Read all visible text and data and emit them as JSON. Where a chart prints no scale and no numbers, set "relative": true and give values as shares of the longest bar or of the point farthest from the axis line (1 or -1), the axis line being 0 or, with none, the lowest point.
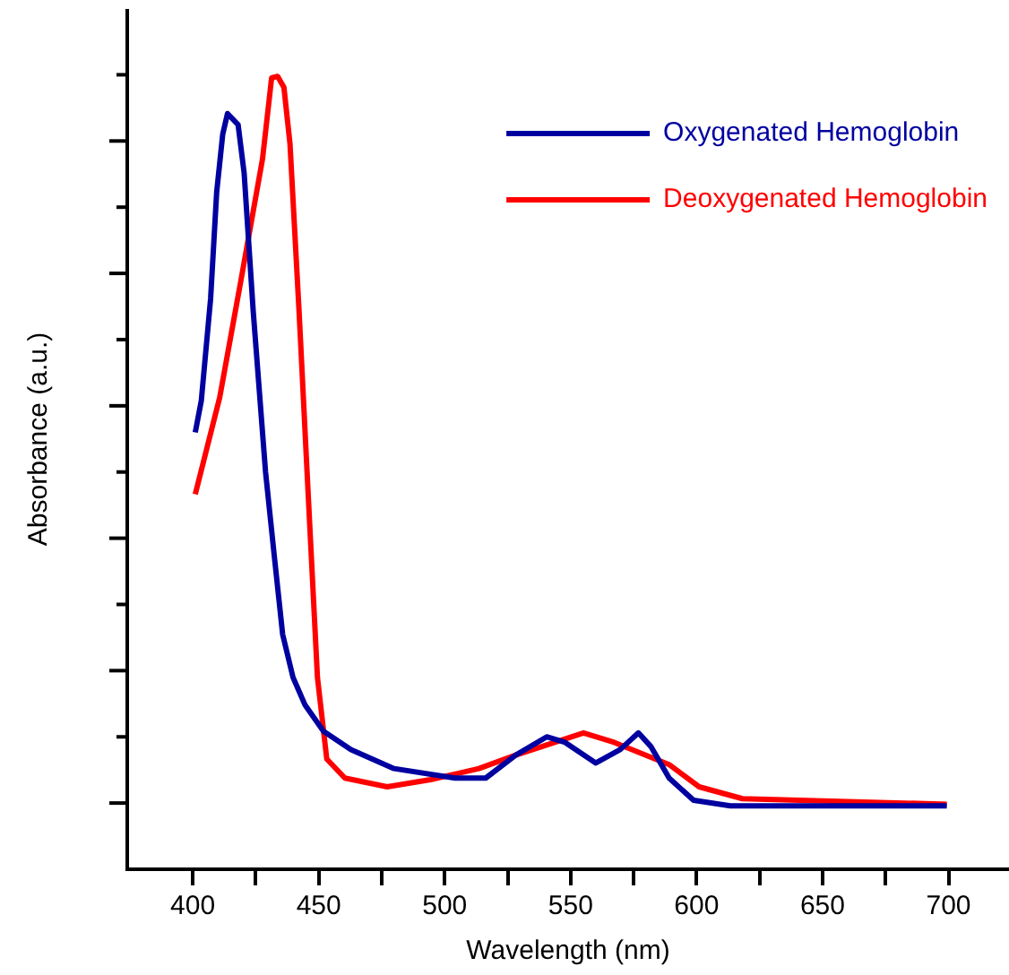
{
  "chart_data": {
    "type": "line",
    "xlabel": "Wavelength (nm)",
    "ylabel": "Absorbance (a.u.)",
    "relative": true,
    "xlim": [
      374,
      724
    ],
    "xticks": [
      400,
      {
        "value": 425,
        "label": null
      },
      450,
      {
        "value": 475,
        "label": null
      },
      500,
      {
        "value": 525,
        "label": null
      },
      550,
      {
        "value": 575,
        "label": null
      },
      600,
      {
        "value": 625,
        "label": null
      },
      650,
      {
        "value": 675,
        "label": null
      },
      700
    ],
    "legend": "top right",
    "grid": false,
    "series": [
      {
        "name": "Oxygenated Hemoglobin",
        "color": "#0000a0",
        "x": [
          401,
          403.4,
          407.1,
          409.5,
          411.9,
          413.8,
          418,
          420.4,
          424,
          428.9,
          432.5,
          435.7,
          439.8,
          444.6,
          451.9,
          462.8,
          479.9,
          504.1,
          516.3,
          528.2,
          540.5,
          547.8,
          560,
          569.7,
          576.9,
          581.8,
          589.1,
          598.8,
          613.4,
          699.3
        ],
        "values": [
          0.551,
          0.591,
          0.72,
          0.854,
          0.927,
          0.953,
          0.939,
          0.878,
          0.704,
          0.501,
          0.391,
          0.296,
          0.242,
          0.207,
          0.174,
          0.151,
          0.127,
          0.115,
          0.115,
          0.144,
          0.167,
          0.16,
          0.134,
          0.151,
          0.172,
          0.155,
          0.115,
          0.087,
          0.08,
          0.08
        ]
      },
      {
        "name": "Deoxygenated Hemoglobin",
        "color": "#ff0000",
        "x": [
          401,
          410.7,
          419.2,
          427.7,
          431.3,
          433.7,
          436.2,
          438.6,
          442.2,
          445.9,
          449.5,
          453.2,
          460.4,
          477.2,
          494.4,
          513.6,
          528.2,
          555.1,
          567.3,
          589.1,
          601,
          618.2,
          699.3
        ],
        "values": [
          0.473,
          0.595,
          0.744,
          0.896,
          0.998,
          1,
          0.986,
          0.915,
          0.704,
          0.468,
          0.242,
          0.139,
          0.115,
          0.104,
          0.113,
          0.127,
          0.144,
          0.172,
          0.16,
          0.132,
          0.104,
          0.089,
          0.082
        ]
      }
    ]
  }
}
